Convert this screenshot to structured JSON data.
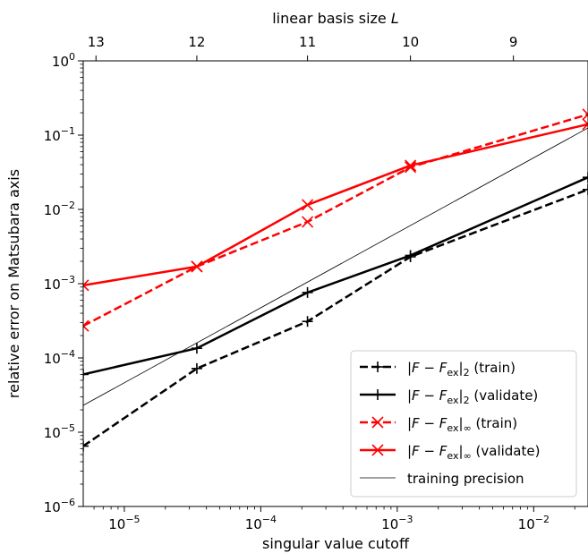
{
  "chart_data": {
    "type": "line",
    "xlabel": "singular value cutoff",
    "ylabel": "relative error on Matsubara axis",
    "top_xlabel": "linear basis size L",
    "xscale": "log",
    "yscale": "log",
    "xlim": [
      5e-06,
      0.025
    ],
    "ylim": [
      1e-06,
      1
    ],
    "x_ticks": [
      {
        "value": 1e-05,
        "base": "10",
        "exp": "−5"
      },
      {
        "value": 0.0001,
        "base": "10",
        "exp": "−4"
      },
      {
        "value": 0.001,
        "base": "10",
        "exp": "−3"
      },
      {
        "value": 0.01,
        "base": "10",
        "exp": "−2"
      }
    ],
    "y_ticks": [
      {
        "value": 1e-06,
        "base": "10",
        "exp": "−6"
      },
      {
        "value": 1e-05,
        "base": "10",
        "exp": "−5"
      },
      {
        "value": 0.0001,
        "base": "10",
        "exp": "−4"
      },
      {
        "value": 0.001,
        "base": "10",
        "exp": "−3"
      },
      {
        "value": 0.01,
        "base": "10",
        "exp": "−2"
      },
      {
        "value": 0.1,
        "base": "10",
        "exp": "−1"
      },
      {
        "value": 1,
        "base": "10",
        "exp": "0"
      }
    ],
    "top_ticks": [
      {
        "value": 6.2e-06,
        "label": "13"
      },
      {
        "value": 3.4e-05,
        "label": "12"
      },
      {
        "value": 0.00022,
        "label": "11"
      },
      {
        "value": 0.00125,
        "label": "10"
      },
      {
        "value": 0.0071,
        "label": "9"
      }
    ],
    "series": [
      {
        "name": "|F − F_ex|_2 (train)",
        "legend": {
          "pre": "|F − F",
          "sub": "ex",
          "post": "|",
          "sub2": "2",
          "tail": " (train)"
        },
        "color": "#000000",
        "dash": "dashed",
        "marker": "plus",
        "x": [
          5e-06,
          3.4e-05,
          0.00022,
          0.00125,
          0.025
        ],
        "y": [
          6.5e-06,
          7.2e-05,
          0.00031,
          0.0023,
          0.0185
        ]
      },
      {
        "name": "|F − F_ex|_2 (validate)",
        "legend": {
          "pre": "|F − F",
          "sub": "ex",
          "post": "|",
          "sub2": "2",
          "tail": " (validate)"
        },
        "color": "#000000",
        "dash": "solid",
        "marker": "plus",
        "x": [
          5e-06,
          3.4e-05,
          0.00022,
          0.00125,
          0.025
        ],
        "y": [
          6e-05,
          0.000135,
          0.00076,
          0.0024,
          0.027
        ]
      },
      {
        "name": "|F − F_ex|_∞ (train)",
        "legend": {
          "pre": "|F − F",
          "sub": "ex",
          "post": "|",
          "sub2": "∞",
          "tail": " (train)"
        },
        "color": "#ff0000",
        "dash": "dashed",
        "marker": "x",
        "x": [
          5e-06,
          3.4e-05,
          0.00022,
          0.00125,
          0.025
        ],
        "y": [
          0.00027,
          0.0017,
          0.0068,
          0.037,
          0.19
        ]
      },
      {
        "name": "|F − F_ex|_∞ (validate)",
        "legend": {
          "pre": "|F − F",
          "sub": "ex",
          "post": "|",
          "sub2": "∞",
          "tail": " (validate)"
        },
        "color": "#ff0000",
        "dash": "solid",
        "marker": "x",
        "x": [
          5e-06,
          3.4e-05,
          0.00022,
          0.00125,
          0.025
        ],
        "y": [
          0.00095,
          0.0017,
          0.0115,
          0.039,
          0.14
        ]
      },
      {
        "name": "training precision",
        "legend": {
          "pre": "training precision",
          "sub": "",
          "post": "",
          "sub2": "",
          "tail": ""
        },
        "color": "#000000",
        "dash": "thin",
        "marker": "none",
        "x": [
          5e-06,
          0.025
        ],
        "y": [
          2.3e-05,
          0.125
        ]
      }
    ],
    "legend_position": "lower-right",
    "grid": false
  }
}
